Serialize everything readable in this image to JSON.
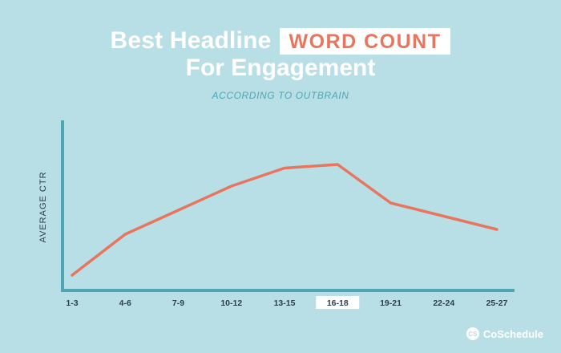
{
  "title": {
    "line1_prefix": "Best Headline",
    "highlight": "WORD COUNT",
    "line2": "For Engagement"
  },
  "subtitle": "ACCORDING TO OUTBRAIN",
  "brand": {
    "mark": "CS",
    "name": "CoSchedule"
  },
  "colors": {
    "background": "#b9dfe6",
    "line": "#e8765f",
    "axis": "#4ea6b3",
    "highlight_box": "#ffffff"
  },
  "chart_data": {
    "type": "line",
    "title": "Best Headline WORD COUNT For Engagement",
    "subtitle": "ACCORDING TO OUTBRAIN",
    "xlabel": "",
    "ylabel": "AVERAGE CTR",
    "categories": [
      "1-3",
      "4-6",
      "7-9",
      "10-12",
      "13-15",
      "16-18",
      "19-21",
      "22-24",
      "25-27"
    ],
    "highlighted_category": "16-18",
    "series": [
      {
        "values": [
          0.08,
          0.42,
          0.62,
          0.82,
          0.97,
          1.0,
          0.68,
          0.57,
          0.46
        ]
      }
    ],
    "ylim": [
      0,
      1.1
    ],
    "grid": false,
    "legend": "none"
  }
}
